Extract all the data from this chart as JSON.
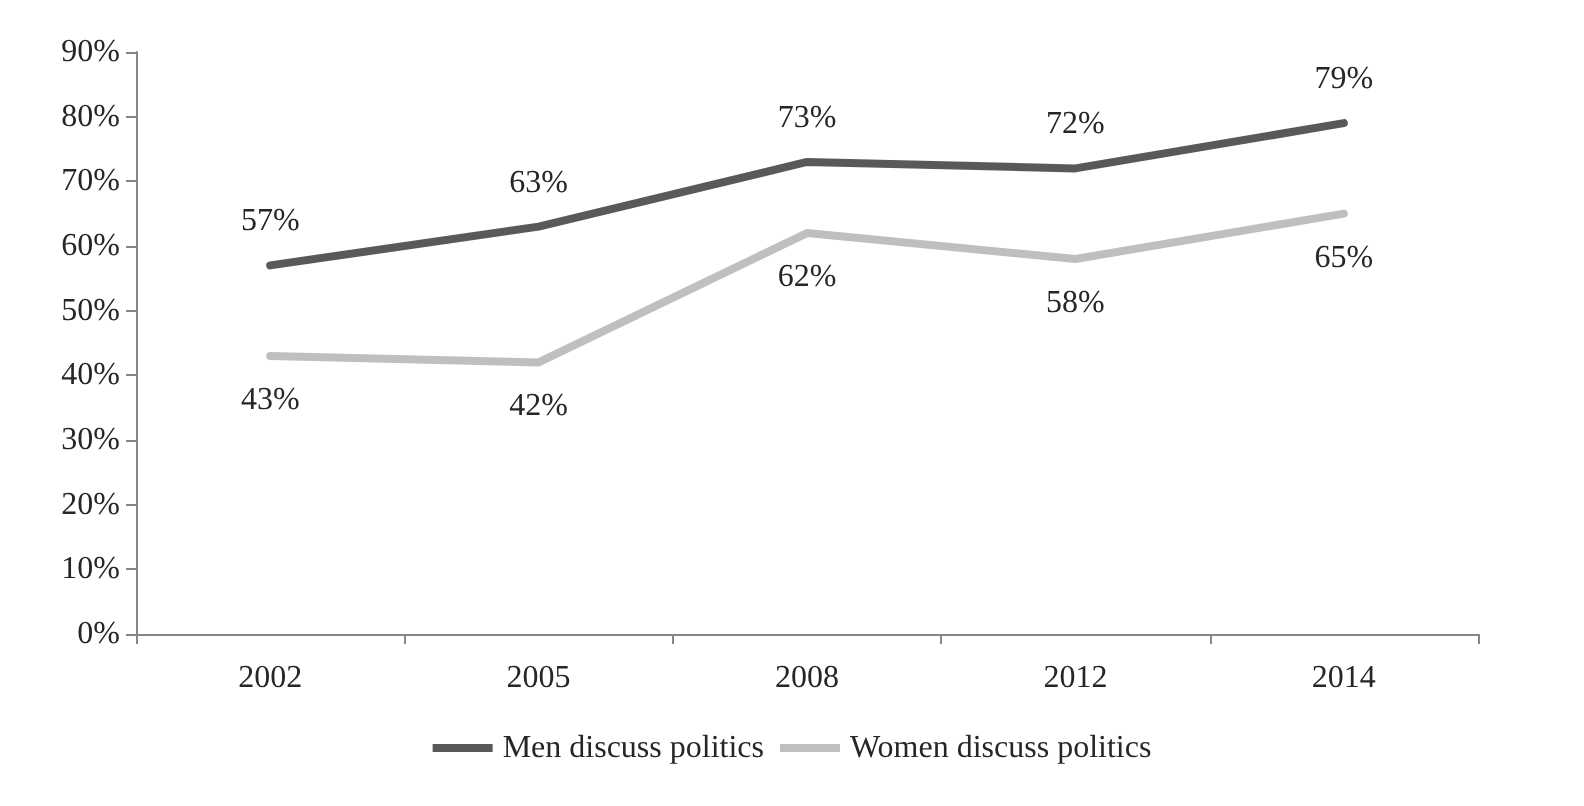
{
  "chart_data": {
    "type": "line",
    "categories": [
      "2002",
      "2005",
      "2008",
      "2012",
      "2014"
    ],
    "series": [
      {
        "name": "Men discuss politics",
        "color": "#595959",
        "values": [
          57,
          63,
          73,
          72,
          79
        ],
        "value_labels": [
          "57%",
          "63%",
          "73%",
          "72%",
          "79%"
        ]
      },
      {
        "name": "Women discuss politics",
        "color": "#bfbfbf",
        "values": [
          43,
          42,
          62,
          58,
          65
        ],
        "value_labels": [
          "43%",
          "42%",
          "62%",
          "58%",
          "65%"
        ]
      }
    ],
    "ylim": [
      0,
      90
    ],
    "yticks": [
      {
        "value": 0,
        "label": "0%"
      },
      {
        "value": 10,
        "label": "10%"
      },
      {
        "value": 20,
        "label": "20%"
      },
      {
        "value": 30,
        "label": "30%"
      },
      {
        "value": 40,
        "label": "40%"
      },
      {
        "value": 50,
        "label": "50%"
      },
      {
        "value": 60,
        "label": "60%"
      },
      {
        "value": 70,
        "label": "70%"
      },
      {
        "value": 80,
        "label": "80%"
      },
      {
        "value": 90,
        "label": "90%"
      }
    ],
    "grid": false,
    "legend": "bottom",
    "marker": "none",
    "line_style": "solid"
  }
}
